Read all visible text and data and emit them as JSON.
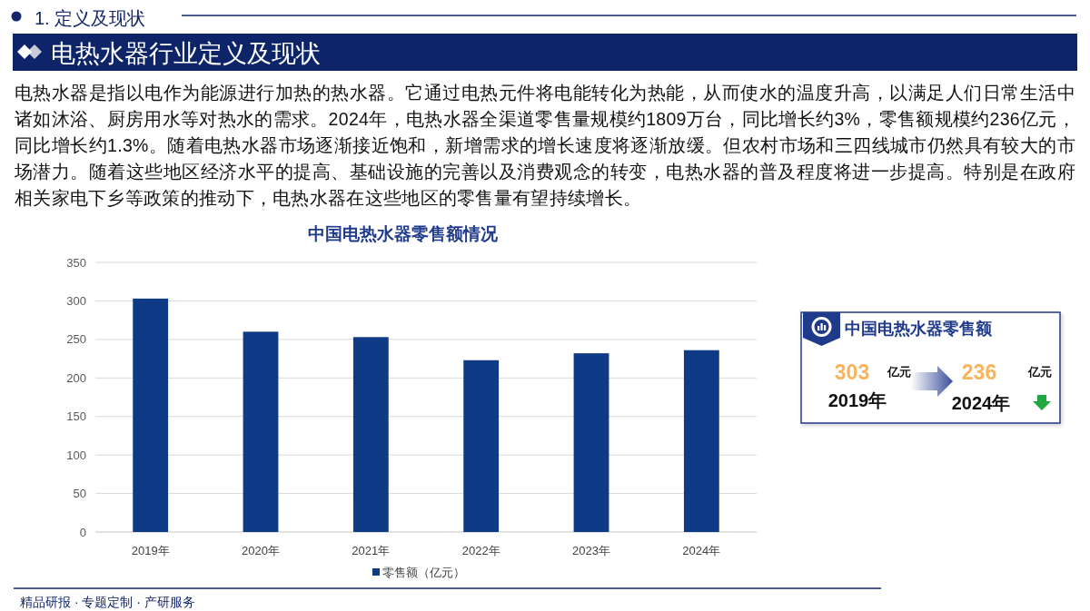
{
  "chart_data": [
    {
      "type": "other",
      "title": "电热水器行业定义及现状",
      "annotations": [
        "1. 定义及现状",
        "电热水器是指以电作为能源进行加热的热水器。它通过电热元件将电能转化为热能，从而使水的温度升高，以满足人们日常生活中诸如沐浴、厨房用水等对热水的需求。2024年，电热水器全渠道零售量规模约1809万台，同比增长约3%，零售额规模约236亿元，同比增长约1.3%。随着电热水器市场逐渐接近饱和，新增需求的增长速度将逐渐放缓。但农村市场和三四线城市仍然具有较大的市场潜力。随着这些地区经济水平的提高、基础设施的完善以及消费观念的转变，电热水器的普及程度将进一步提高。特别是在政府相关家电下乡等政策的推动下，电热水器在这些地区的零售量有望持续增长。",
        "精品研报 · 专题定制 · 产研服务"
      ]
    },
    {
      "type": "bar",
      "title": "中国电热水器零售额情况",
      "categories": [
        "2019年",
        "2020年",
        "2021年",
        "2022年",
        "2023年",
        "2024年"
      ],
      "series": [
        {
          "name": "零售额（亿元）",
          "color": "#0f3a85",
          "values": [
            303,
            260,
            253,
            223,
            232,
            236
          ]
        }
      ],
      "ylim": [
        0,
        350
      ],
      "yticks": [
        0,
        50,
        100,
        150,
        200,
        250,
        300,
        350
      ],
      "grid": true,
      "legend": "bottom"
    },
    {
      "type": "other",
      "title": "中国电热水器零售额",
      "categories": [
        "2019年",
        "2024年"
      ],
      "values": [
        303,
        236
      ],
      "data_labels": true,
      "annotations": [
        "亿元",
        "亿元"
      ]
    }
  ]
}
